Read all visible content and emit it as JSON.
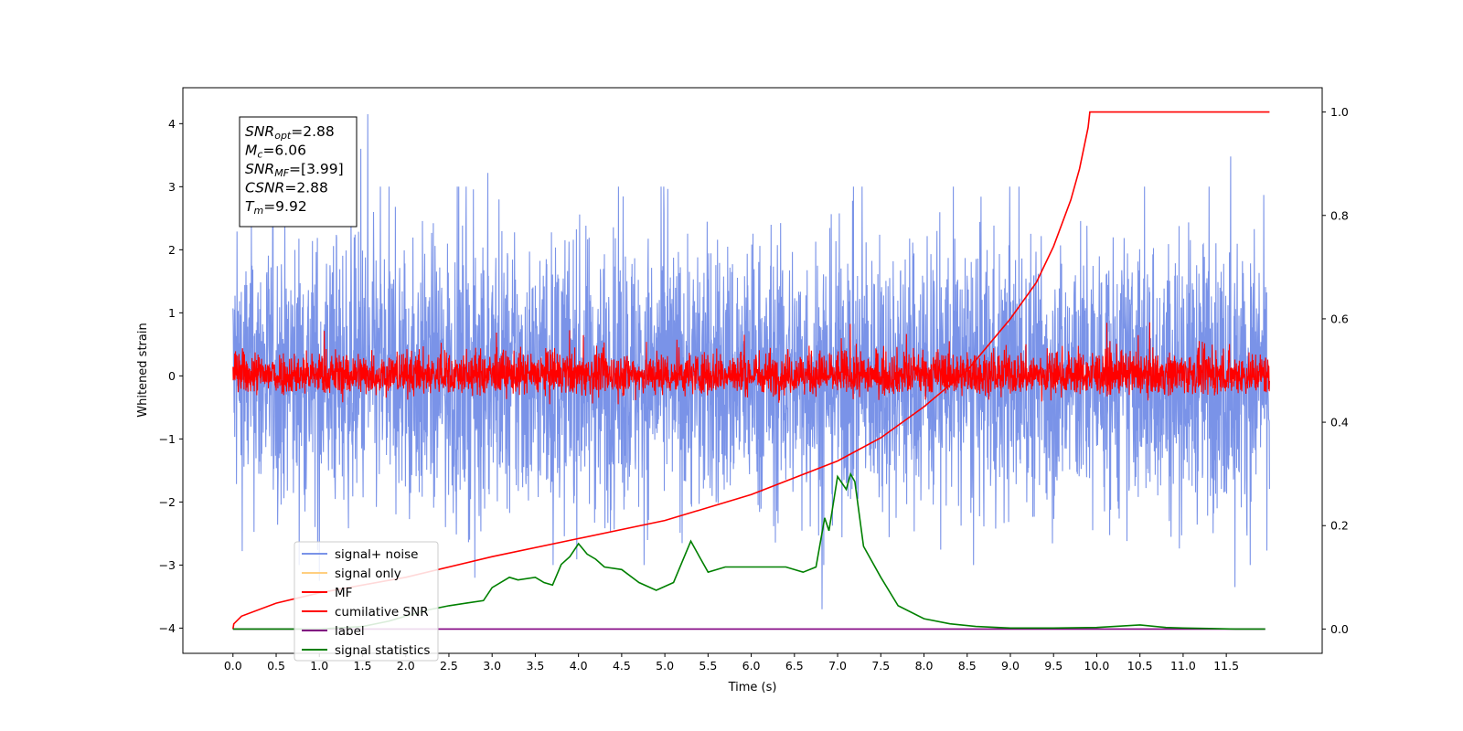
{
  "chart_data": {
    "type": "line",
    "xlabel": "Time (s)",
    "ylabel": "Whitened strain",
    "xlim": [
      -0.58,
      12.61
    ],
    "ylim": [
      -4.4,
      4.57
    ],
    "y2lim": [
      -0.047,
      1.047
    ],
    "x_ticks": [
      "0.0",
      "0.5",
      "1.0",
      "1.5",
      "2.0",
      "2.5",
      "3.0",
      "3.5",
      "4.0",
      "4.5",
      "5.0",
      "5.5",
      "6.0",
      "6.5",
      "7.0",
      "7.5",
      "8.0",
      "8.5",
      "9.0",
      "9.5",
      "10.0",
      "10.5",
      "11.0",
      "11.5"
    ],
    "y_ticks": [
      "4",
      "3",
      "2",
      "1",
      "0",
      "−1",
      "−2",
      "−3",
      "−4"
    ],
    "y2_ticks": [
      "1.0",
      "0.8",
      "0.6",
      "0.4",
      "0.2",
      "0.0"
    ],
    "grid": false,
    "legend_position": "lower-left",
    "legend": [
      {
        "label": "signal+ noise",
        "color": "#7a93e8"
      },
      {
        "label": "signal only",
        "color": "#ffcf7f"
      },
      {
        "label": "MF",
        "color": "#ff0000"
      },
      {
        "label": "cumilative SNR",
        "color": "#ff0000"
      },
      {
        "label": "label",
        "color": "#800080"
      },
      {
        "label": "signal statistics",
        "color": "#008000"
      }
    ],
    "annotations": [
      {
        "var": "SNR",
        "sub": "opt",
        "value": "=2.88"
      },
      {
        "var": "M",
        "sub": "c",
        "value": "=6.06"
      },
      {
        "var": "SNR",
        "sub": "MF",
        "value": "=[3.99]"
      },
      {
        "var": "CSNR",
        "sub": "",
        "value": "=2.88"
      },
      {
        "var": "T",
        "sub": "m",
        "value": "=9.92"
      }
    ],
    "series": [
      {
        "name": "signal+ noise",
        "axis": "left",
        "color": "#7a93e8",
        "x_range": [
          0.0,
          12.0
        ],
        "envelope": {
          "upper": [
            1.2,
            3.0
          ],
          "lower": [
            -1.2,
            -3.0
          ]
        },
        "peaks": [
          [
            1.56,
            4.15
          ],
          [
            1.48,
            3.6
          ],
          [
            2.95,
            3.22
          ],
          [
            11.55,
            3.48
          ],
          [
            1.0,
            -3.25
          ],
          [
            2.8,
            -3.2
          ],
          [
            6.82,
            -3.7
          ],
          [
            11.6,
            -3.35
          ]
        ]
      },
      {
        "name": "MF",
        "axis": "left",
        "color": "#ff0000",
        "x_range": [
          0.0,
          12.0
        ],
        "envelope": {
          "upper": [
            0.25,
            0.85
          ],
          "lower": [
            -0.2,
            -0.45
          ]
        }
      },
      {
        "name": "cumilative SNR",
        "axis": "right",
        "color": "#ff0000",
        "x": [
          0.0,
          0.01,
          0.1,
          0.5,
          1.0,
          2.0,
          3.0,
          4.0,
          5.0,
          6.0,
          7.0,
          7.5,
          8.0,
          8.5,
          9.0,
          9.3,
          9.5,
          9.7,
          9.8,
          9.85,
          9.9,
          9.92,
          12.0
        ],
        "values": [
          0.0,
          0.01,
          0.025,
          0.05,
          0.07,
          0.1,
          0.14,
          0.175,
          0.21,
          0.26,
          0.325,
          0.37,
          0.43,
          0.5,
          0.6,
          0.67,
          0.74,
          0.83,
          0.89,
          0.93,
          0.97,
          1.0,
          1.0
        ]
      },
      {
        "name": "label",
        "axis": "right",
        "color": "#800080",
        "x": [
          0.0,
          11.95
        ],
        "values": [
          0.0,
          0.0
        ]
      },
      {
        "name": "signal statistics",
        "axis": "right",
        "color": "#008000",
        "x": [
          0.0,
          0.5,
          1.0,
          1.5,
          1.8,
          2.0,
          2.2,
          2.5,
          2.7,
          2.9,
          3.0,
          3.2,
          3.3,
          3.5,
          3.6,
          3.7,
          3.8,
          3.9,
          4.0,
          4.1,
          4.2,
          4.3,
          4.5,
          4.7,
          4.9,
          5.1,
          5.2,
          5.3,
          5.4,
          5.5,
          5.7,
          5.9,
          6.0,
          6.2,
          6.4,
          6.6,
          6.75,
          6.85,
          6.9,
          7.0,
          7.1,
          7.15,
          7.2,
          7.3,
          7.5,
          7.7,
          8.0,
          8.3,
          8.6,
          9.0,
          9.5,
          10.0,
          10.5,
          10.8,
          11.0,
          11.3,
          11.6,
          11.95
        ],
        "values": [
          0.0,
          0.0,
          0.0,
          0.005,
          0.015,
          0.025,
          0.035,
          0.045,
          0.05,
          0.055,
          0.08,
          0.1,
          0.095,
          0.1,
          0.09,
          0.085,
          0.125,
          0.14,
          0.165,
          0.145,
          0.135,
          0.12,
          0.115,
          0.09,
          0.075,
          0.09,
          0.13,
          0.17,
          0.14,
          0.11,
          0.12,
          0.12,
          0.12,
          0.12,
          0.12,
          0.11,
          0.12,
          0.215,
          0.19,
          0.295,
          0.27,
          0.3,
          0.285,
          0.16,
          0.1,
          0.045,
          0.02,
          0.01,
          0.005,
          0.002,
          0.002,
          0.003,
          0.008,
          0.003,
          0.002,
          0.001,
          0.0,
          0.0
        ]
      }
    ]
  }
}
